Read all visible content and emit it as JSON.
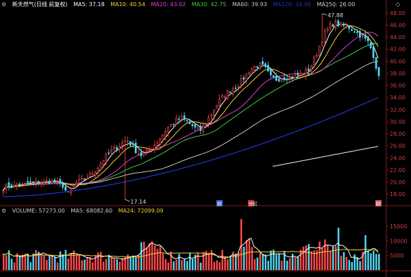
{
  "header": {
    "stock_name": "新天然气(日线 前复权)",
    "ma_items": [
      {
        "label": "MA5: 37.18",
        "color": "#ffffff"
      },
      {
        "label": "MA10: 40.54",
        "color": "#f5d230"
      },
      {
        "label": "MA20: 43.02",
        "color": "#e040e0"
      },
      {
        "label": "MA30: 42.75",
        "color": "#40d040"
      },
      {
        "label": "MA60: 39.93",
        "color": "#c8c8c8"
      },
      {
        "label": "MA120: 34.00",
        "color": "#2030c8"
      },
      {
        "label": "MA250: 26.00",
        "color": "#d0d0d0"
      }
    ]
  },
  "volume_header": {
    "items": [
      {
        "label": "VOLUME: 57273.00",
        "color": "#cccccc"
      },
      {
        "label": "MA5: 68082.60",
        "color": "#cccccc"
      },
      {
        "label": "MA24: 72099.09",
        "color": "#f5d230"
      }
    ]
  },
  "annotations": {
    "high": "47.88",
    "low": "17.14"
  },
  "event_markers": [
    "财",
    "分红",
    "财"
  ],
  "colors": {
    "up": "#ff4a4a",
    "down": "#50d8f0",
    "background": "#000000",
    "grid": "#8a1a1a"
  },
  "icons": [
    "settings-icon",
    "collapse-icon",
    "volume-settings-icon"
  ],
  "chart_data": {
    "type": "candlestick",
    "title": "新天然气(日线 前复权)",
    "price_axis": {
      "ticks": [
        "48.00",
        "46.00",
        "44.00",
        "42.00",
        "40.00",
        "38.00",
        "36.00",
        "34.00",
        "32.00",
        "30.00",
        "28.00",
        "26.00",
        "24.00",
        "22.00",
        "20.00",
        "18.00"
      ],
      "range": [
        17,
        49
      ]
    },
    "volume_axis": {
      "ticks": [
        "15000",
        "10000",
        "5000"
      ],
      "range": [
        0,
        19000
      ]
    },
    "high_low": {
      "high": 47.88,
      "low": 17.14
    },
    "close_path": [
      19.0,
      19.6,
      19.2,
      19.8,
      19.4,
      19.9,
      19.7,
      20.0,
      19.9,
      20.2,
      20.1,
      19.8,
      19.5,
      17.9,
      19.2,
      20.0,
      20.3,
      20.8,
      21.5,
      22.3,
      23.6,
      24.5,
      25.2,
      25.8,
      26.4,
      27.0,
      26.1,
      25.0,
      24.4,
      25.0,
      25.8,
      26.5,
      27.6,
      28.8,
      29.5,
      30.2,
      30.6,
      30.2,
      29.5,
      28.8,
      28.6,
      29.8,
      31.2,
      32.6,
      33.8,
      34.6,
      35.2,
      35.8,
      36.6,
      37.6,
      38.6,
      39.2,
      39.4,
      38.8,
      37.4,
      37.0,
      37.2,
      37.5,
      37.2,
      37.6,
      37.8,
      38.2,
      38.8,
      40.5,
      42.5,
      44.6,
      45.8,
      46.3,
      46.1,
      45.8,
      45.6,
      45.1,
      44.5,
      43.8,
      43.0,
      40.8,
      37.2
    ],
    "volume_ma5_value": 68082.6,
    "volume_ma24_value": 72099.09
  }
}
